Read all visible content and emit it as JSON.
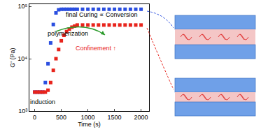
{
  "chart_data": {
    "type": "scatter",
    "x_label": "Time (s)",
    "y_label": "G' (Pa)",
    "log": "y",
    "grid": false,
    "marker": "square",
    "x": [
      0,
      50,
      100,
      150,
      200,
      250,
      300,
      350,
      400,
      450,
      500,
      550,
      600,
      650,
      700,
      750,
      800,
      900,
      1000,
      1100,
      1200,
      1300,
      1400,
      1500,
      1600,
      1700,
      1800,
      1900,
      2000
    ],
    "series": [
      {
        "color": "#2b4fe0",
        "values": [
          2300,
          2300,
          2300,
          2300,
          3500,
          8000,
          20000,
          45000,
          75000,
          86000,
          88000,
          88000,
          88000,
          88000,
          88000,
          88000,
          88000,
          88000,
          88000,
          88000,
          88000,
          88000,
          88000,
          88000,
          88000,
          88000,
          88000,
          88000,
          88000
        ]
      },
      {
        "color": "#e8241c",
        "values": [
          2300,
          2300,
          2300,
          2300,
          2300,
          2500,
          3500,
          6000,
          10000,
          15000,
          22000,
          28000,
          33000,
          37000,
          40000,
          42000,
          44000,
          44000,
          44000,
          44000,
          44000,
          44000,
          44000,
          44000,
          44000,
          44000,
          44000,
          44000,
          44000
        ]
      }
    ],
    "xlim": [
      -100,
      2150
    ],
    "xticks": [
      0,
      500,
      1000,
      1500,
      2000
    ],
    "ylim": [
      1000,
      110000
    ],
    "yticks": [
      {
        "value": 1000,
        "label": "10³"
      },
      {
        "value": 10000,
        "label": "10⁴"
      },
      {
        "value": 100000,
        "label": "10⁵"
      }
    ],
    "annotations": [
      {
        "text": "induction",
        "x": 150,
        "y": 1500,
        "color": "#000000"
      },
      {
        "text": "polymerization",
        "x": 620,
        "y": 30000,
        "color": "#000000"
      },
      {
        "text": "final Curing ∝ Conversion",
        "x": 1250,
        "y": 70000,
        "color": "#000000"
      },
      {
        "text": "Confinement ↑",
        "x": 1150,
        "y": 16000,
        "color": "#e8241c"
      }
    ]
  }
}
